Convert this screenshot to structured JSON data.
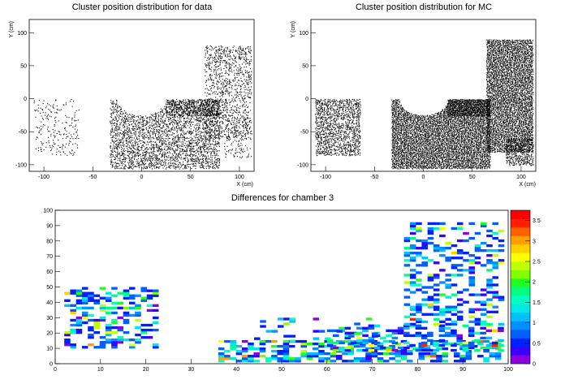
{
  "chart_data": [
    {
      "type": "scatter",
      "title": "Cluster position distribution for data",
      "xlabel": "X (cm)",
      "ylabel": "Y (cm)",
      "xlim": [
        -115,
        115
      ],
      "ylim": [
        -110,
        120
      ],
      "xticks": [
        "-100",
        "-50",
        "0",
        "50",
        "100"
      ],
      "yticks": [
        "-100",
        "-50",
        "0",
        "50",
        "100"
      ],
      "regions": [
        {
          "shape": "rect",
          "x": [
            -110,
            -65
          ],
          "y": [
            -85,
            0
          ],
          "density": 0.1
        },
        {
          "shape": "rect",
          "x": [
            -32,
            80
          ],
          "y": [
            -105,
            0
          ],
          "density": 0.45,
          "exclude_semicircle": {
            "cx": 0,
            "cy": 0,
            "r": 25
          }
        },
        {
          "shape": "rect",
          "x": [
            25,
            80
          ],
          "y": [
            -25,
            0
          ],
          "density": 0.55
        },
        {
          "shape": "rect",
          "x": [
            65,
            112
          ],
          "y": [
            -60,
            80
          ],
          "density": 0.3
        },
        {
          "shape": "rect",
          "x": [
            85,
            112
          ],
          "y": [
            -90,
            -40
          ],
          "density": 0.15
        }
      ]
    },
    {
      "type": "scatter",
      "title": "Cluster position distribution for MC",
      "xlabel": "X (cm)",
      "ylabel": "Y (cm)",
      "xlim": [
        -115,
        115
      ],
      "ylim": [
        -110,
        120
      ],
      "xticks": [
        "-100",
        "-50",
        "0",
        "50",
        "100"
      ],
      "yticks": [
        "-100",
        "-50",
        "0",
        "50",
        "100"
      ],
      "regions": [
        {
          "shape": "rect",
          "x": [
            -110,
            -65
          ],
          "y": [
            -85,
            0
          ],
          "density": 0.55
        },
        {
          "shape": "rect",
          "x": [
            -32,
            68
          ],
          "y": [
            -105,
            0
          ],
          "density": 0.95,
          "exclude_semicircle": {
            "cx": 0,
            "cy": 0,
            "r": 25
          }
        },
        {
          "shape": "rect",
          "x": [
            25,
            68
          ],
          "y": [
            -25,
            0
          ],
          "density": 0.98
        },
        {
          "shape": "rect",
          "x": [
            65,
            112
          ],
          "y": [
            -80,
            90
          ],
          "density": 0.9
        },
        {
          "shape": "rect",
          "x": [
            85,
            112
          ],
          "y": [
            -100,
            -60
          ],
          "density": 0.6
        }
      ]
    },
    {
      "type": "heatmap",
      "title": "Differences for chamber 3",
      "xlabel": "",
      "ylabel": "",
      "xlim": [
        0,
        100
      ],
      "ylim": [
        0,
        100
      ],
      "xticks": [
        "0",
        "10",
        "20",
        "30",
        "40",
        "50",
        "60",
        "70",
        "80",
        "90",
        "100"
      ],
      "yticks": [
        "0",
        "10",
        "20",
        "30",
        "40",
        "50",
        "60",
        "70",
        "80",
        "90",
        "100"
      ],
      "zlim": [
        0,
        3.75
      ],
      "zticks": [
        "0",
        "0.5",
        "1",
        "1.5",
        "2",
        "2.5",
        "3",
        "3.5"
      ],
      "colorbar": [
        "#8a00e0",
        "#3a00ff",
        "#0020ff",
        "#0060ff",
        "#0090ff",
        "#00c0ff",
        "#00e8e8",
        "#00ffc0",
        "#00ff80",
        "#20ff20",
        "#80ff00",
        "#c0ff00",
        "#ffff00",
        "#ffd000",
        "#ffa000",
        "#ff6000",
        "#ff2000",
        "#ff0000"
      ],
      "regions": [
        {
          "x": [
            2,
            22
          ],
          "y": [
            10,
            50
          ],
          "fill": 0.45
        },
        {
          "x": [
            36,
            98
          ],
          "y": [
            1,
            14
          ],
          "fill": 0.55
        },
        {
          "x": [
            60,
            98
          ],
          "y": [
            8,
            25
          ],
          "fill": 0.4
        },
        {
          "x": [
            77,
            98
          ],
          "y": [
            25,
            92
          ],
          "fill": 0.35
        },
        {
          "x": [
            40,
            70
          ],
          "y": [
            14,
            30
          ],
          "fill": 0.1
        }
      ]
    }
  ]
}
